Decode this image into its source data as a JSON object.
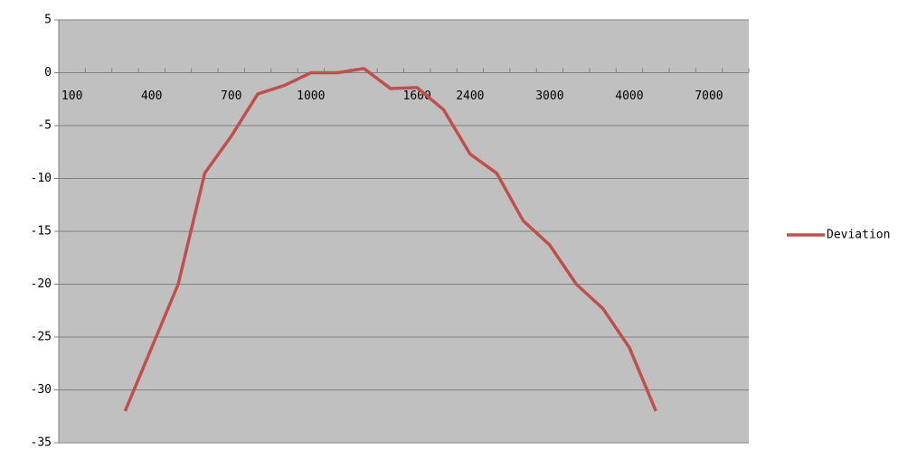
{
  "chart_data": {
    "type": "line",
    "categories": [
      "100",
      null,
      null,
      "400",
      null,
      null,
      "700",
      null,
      null,
      "1000",
      null,
      null,
      null,
      "1600",
      null,
      "2400",
      null,
      null,
      "3000",
      null,
      null,
      "4000",
      null,
      null,
      "7000",
      null
    ],
    "series": [
      {
        "name": "Deviation",
        "color": "#c0504d",
        "values": [
          null,
          null,
          -32,
          -26,
          -20,
          -9.5,
          -6,
          -2,
          -1.2,
          0,
          0,
          0.4,
          -1.5,
          -1.4,
          -3.5,
          -7.7,
          -9.5,
          -14,
          -16.3,
          -20,
          -22.3,
          -26,
          -32,
          null,
          null,
          null
        ]
      }
    ],
    "ylim": [
      -35,
      5
    ],
    "yticks": [
      5,
      0,
      -5,
      -10,
      -15,
      -20,
      -25,
      -30,
      -35
    ],
    "grid": true,
    "legend": "right",
    "plot_background": "#c0c0c0"
  }
}
